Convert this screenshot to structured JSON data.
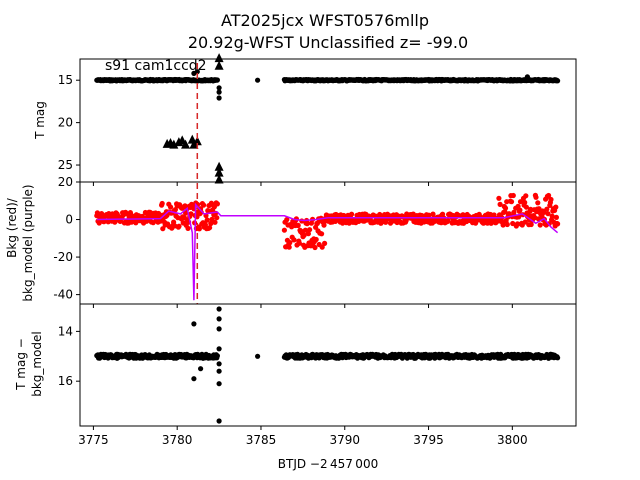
{
  "figure": {
    "title_line1": "AT2025jcx  WFST0576mllp",
    "title_line2": "20.92g-WFST Unclassified z= -99.0",
    "annotation": "s91 cam1ccd2"
  },
  "chart_data": [
    {
      "type": "scatter",
      "panel": "top",
      "ylabel": "T mag",
      "xlim": [
        3774.2,
        3803.8
      ],
      "ylim": [
        27.0,
        12.5
      ],
      "yticks": [
        15,
        20,
        25
      ],
      "xticks": [
        3775,
        3780,
        3785,
        3790,
        3795,
        3800
      ],
      "series": [
        {
          "kind": "points",
          "color": "#000000",
          "segments": [
            {
              "x0": 3775.2,
              "x1": 3782.4,
              "y": 15.0
            },
            {
              "x0": 3786.4,
              "x1": 3802.7,
              "y": 15.0
            }
          ]
        },
        {
          "kind": "triangles",
          "color": "#000000",
          "points": [
            {
              "x": 3779.4,
              "y": 22.5
            },
            {
              "x": 3779.6,
              "y": 22.4
            },
            {
              "x": 3779.8,
              "y": 22.6
            },
            {
              "x": 3780.1,
              "y": 22.3
            },
            {
              "x": 3780.3,
              "y": 22.1
            },
            {
              "x": 3780.5,
              "y": 22.6
            },
            {
              "x": 3780.9,
              "y": 22.0
            },
            {
              "x": 3781.0,
              "y": 22.6
            },
            {
              "x": 3781.2,
              "y": 22.2
            },
            {
              "x": 3782.5,
              "y": 25.2
            },
            {
              "x": 3782.5,
              "y": 25.9
            },
            {
              "x": 3782.5,
              "y": 26.7
            },
            {
              "x": 3782.5,
              "y": 12.4
            },
            {
              "x": 3782.5,
              "y": 13.3
            }
          ]
        },
        {
          "kind": "outliers",
          "color": "#000000",
          "points": [
            {
              "x": 3781.0,
              "y": 14.2
            },
            {
              "x": 3781.2,
              "y": 14.0
            },
            {
              "x": 3782.5,
              "y": 15.9
            },
            {
              "x": 3782.5,
              "y": 16.4
            },
            {
              "x": 3782.5,
              "y": 17.1
            },
            {
              "x": 3784.8,
              "y": 15.0
            },
            {
              "x": 3800.9,
              "y": 14.6
            }
          ]
        }
      ],
      "vline": {
        "x": 3781.2,
        "color": "#d62728",
        "style": "dashed"
      }
    },
    {
      "type": "scatter",
      "panel": "middle",
      "ylabel_line1": "Bkg (red)/",
      "ylabel_line2": "bkg_model (purple)",
      "xlim": [
        3774.2,
        3803.8
      ],
      "ylim": [
        -45,
        20
      ],
      "yticks": [
        20,
        0,
        -20,
        -40
      ],
      "xticks": [
        3775,
        3780,
        3785,
        3790,
        3795,
        3800
      ],
      "series": [
        {
          "kind": "points",
          "color": "#ff0000",
          "segments": [
            {
              "x0": 3775.2,
              "x1": 3779.0,
              "y": 1.0,
              "spread": 3.0
            },
            {
              "x0": 3779.0,
              "x1": 3782.4,
              "y": 2.0,
              "spread": 7.0
            },
            {
              "x0": 3786.4,
              "x1": 3788.8,
              "y": -7.0,
              "spread": 8.0
            },
            {
              "x0": 3788.8,
              "x1": 3799.2,
              "y": 0.5,
              "spread": 2.5
            },
            {
              "x0": 3799.2,
              "x1": 3802.7,
              "y": 4.0,
              "spread": 9.0
            }
          ]
        },
        {
          "kind": "line",
          "color": "#c000ff",
          "points": [
            {
              "x": 3775.2,
              "y": 0.0
            },
            {
              "x": 3779.0,
              "y": 0.5
            },
            {
              "x": 3779.5,
              "y": 4.5
            },
            {
              "x": 3780.2,
              "y": 3.0
            },
            {
              "x": 3780.6,
              "y": 6.0
            },
            {
              "x": 3780.9,
              "y": -7.0
            },
            {
              "x": 3781.0,
              "y": -43.0
            },
            {
              "x": 3781.1,
              "y": 8.0
            },
            {
              "x": 3781.6,
              "y": 3.0
            },
            {
              "x": 3782.4,
              "y": 4.0
            },
            {
              "x": 3782.6,
              "y": 2.0
            },
            {
              "x": 3786.4,
              "y": 2.0
            },
            {
              "x": 3787.0,
              "y": 0.0
            },
            {
              "x": 3787.6,
              "y": -0.5
            },
            {
              "x": 3788.3,
              "y": 0.0
            },
            {
              "x": 3789.0,
              "y": 1.0
            },
            {
              "x": 3795.0,
              "y": 1.0
            },
            {
              "x": 3799.5,
              "y": 1.0
            },
            {
              "x": 3800.6,
              "y": 3.0
            },
            {
              "x": 3801.4,
              "y": -2.0
            },
            {
              "x": 3801.9,
              "y": 0.5
            },
            {
              "x": 3802.3,
              "y": -4.0
            },
            {
              "x": 3802.7,
              "y": -7.0
            }
          ]
        }
      ]
    },
    {
      "type": "scatter",
      "panel": "bottom",
      "ylabel_line1": "T mag −",
      "ylabel_line2": "bkg_model",
      "xlabel": "BTJD −2 457 000",
      "xlim": [
        3774.2,
        3803.8
      ],
      "ylim": [
        17.8,
        12.9
      ],
      "yticks": [
        14,
        16
      ],
      "xticks": [
        3775,
        3780,
        3785,
        3790,
        3795,
        3800
      ],
      "xticklabels": [
        "3775",
        "3780",
        "3785",
        "3790",
        "3795",
        "3800"
      ],
      "series": [
        {
          "kind": "points",
          "color": "#000000",
          "segments": [
            {
              "x0": 3775.2,
              "x1": 3782.4,
              "y": 15.0
            },
            {
              "x0": 3786.4,
              "x1": 3802.7,
              "y": 15.0
            }
          ]
        },
        {
          "kind": "outliers",
          "color": "#000000",
          "points": [
            {
              "x": 3781.0,
              "y": 13.7
            },
            {
              "x": 3782.5,
              "y": 13.1
            },
            {
              "x": 3782.5,
              "y": 13.5
            },
            {
              "x": 3782.5,
              "y": 13.9
            },
            {
              "x": 3782.5,
              "y": 14.7
            },
            {
              "x": 3782.5,
              "y": 15.3
            },
            {
              "x": 3782.5,
              "y": 15.6
            },
            {
              "x": 3782.5,
              "y": 16.1
            },
            {
              "x": 3782.5,
              "y": 17.6
            },
            {
              "x": 3781.0,
              "y": 15.9
            },
            {
              "x": 3781.4,
              "y": 15.5
            },
            {
              "x": 3784.8,
              "y": 15.0
            }
          ]
        }
      ]
    }
  ]
}
